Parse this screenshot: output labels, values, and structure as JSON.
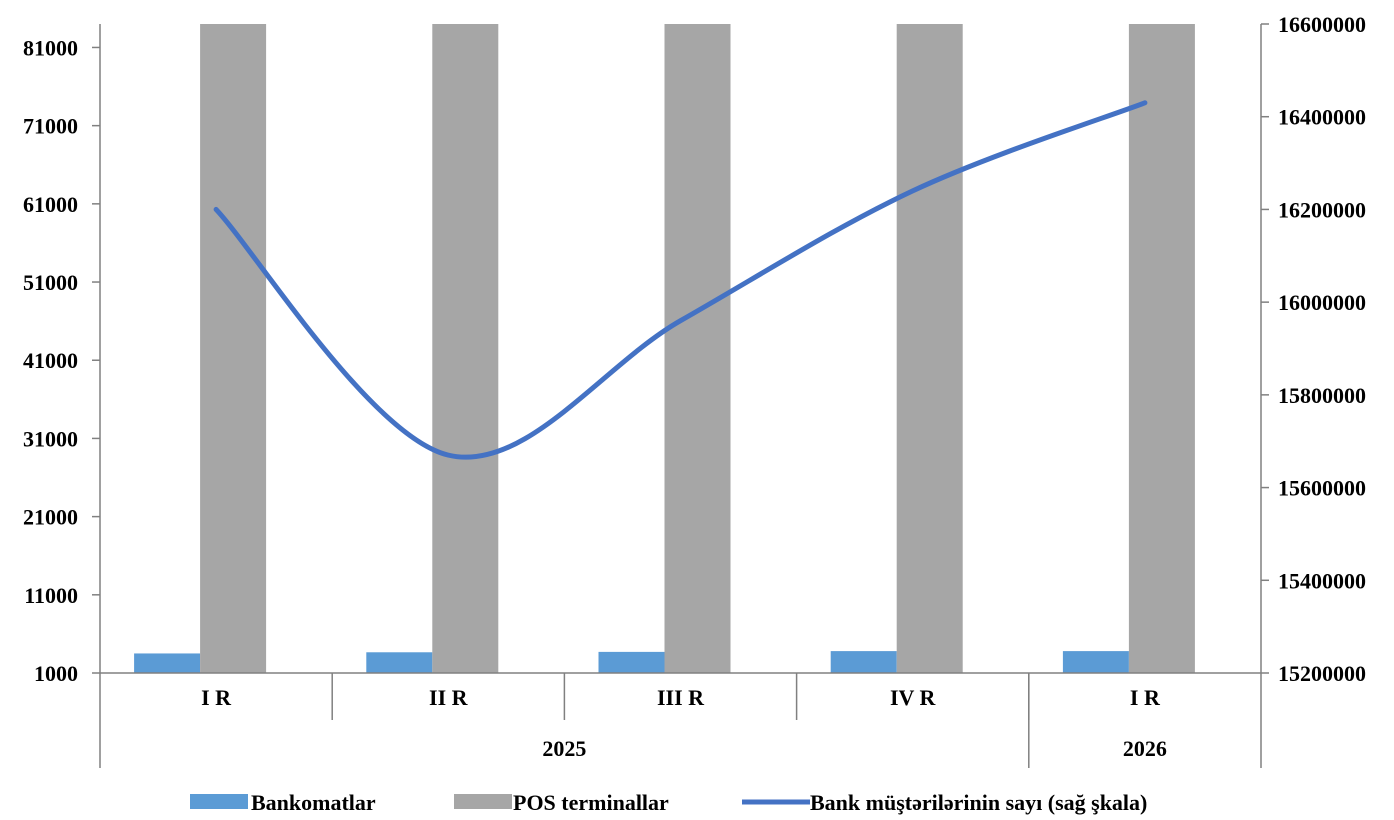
{
  "chart_data": {
    "type": "bar",
    "categories": [
      "I R",
      "II R",
      "III R",
      "IV R",
      "I R"
    ],
    "groups": [
      {
        "label": "2025",
        "span": 4
      },
      {
        "label": "2026",
        "span": 1
      }
    ],
    "series": [
      {
        "name": "Bankomatlar",
        "type": "bar",
        "axis": "left",
        "color": "#5B9BD5",
        "values": [
          3500,
          3650,
          3700,
          3800,
          3800
        ]
      },
      {
        "name": "POS terminallar",
        "type": "bar",
        "axis": "left",
        "color": "#A6A6A6",
        "values": [
          84000,
          84000,
          84000,
          84000,
          84000
        ]
      },
      {
        "name": "Bank müştərilərinin sayı (sağ şkala)",
        "type": "line",
        "axis": "right",
        "color": "#4472C4",
        "values": [
          16200000,
          15670000,
          15960000,
          16240000,
          16430000
        ]
      }
    ],
    "y_left": {
      "min": 1000,
      "max": 84000,
      "ticks": [
        1000,
        11000,
        21000,
        31000,
        41000,
        51000,
        61000,
        71000,
        81000
      ]
    },
    "y_right": {
      "min": 15200000,
      "max": 16600000,
      "ticks": [
        15200000,
        15400000,
        15600000,
        15800000,
        16000000,
        16200000,
        16400000,
        16600000
      ]
    },
    "grid": false,
    "legend_position": "bottom"
  }
}
